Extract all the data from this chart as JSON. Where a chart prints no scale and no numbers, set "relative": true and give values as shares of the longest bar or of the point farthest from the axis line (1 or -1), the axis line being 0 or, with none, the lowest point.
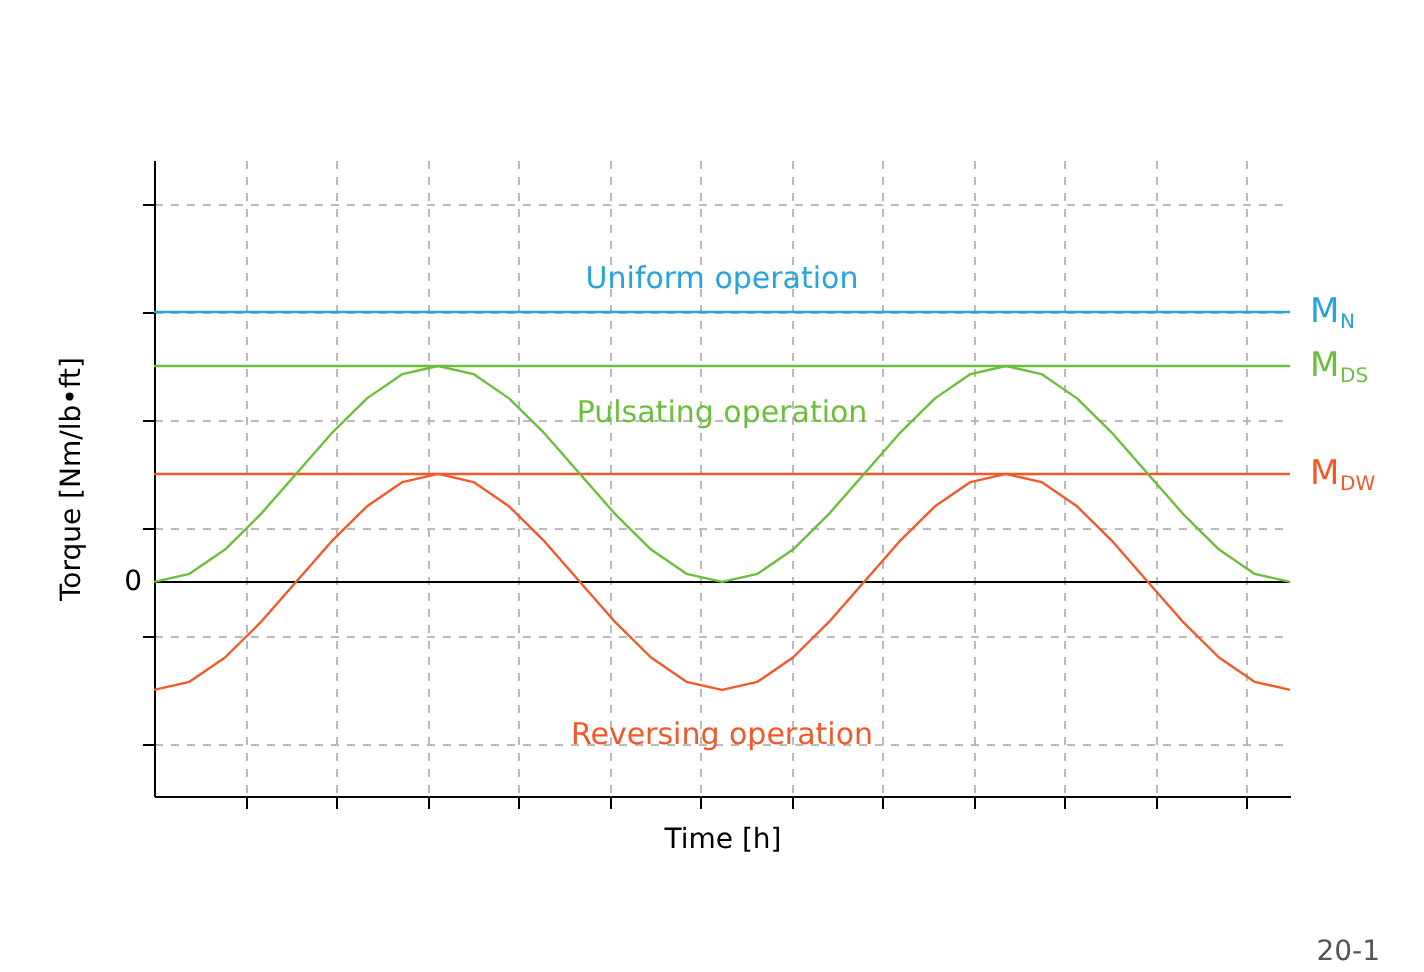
{
  "chart_data": {
    "type": "line",
    "relative": true,
    "xlabel": "Time [h]",
    "ylabel": "Torque [Nm/lb•ft]",
    "grid": true,
    "categories": [
      null,
      null,
      null,
      null,
      null,
      null,
      null,
      null,
      null,
      null,
      null,
      null,
      null,
      null,
      null,
      null,
      null,
      null,
      null,
      null,
      null,
      null,
      null,
      null,
      null,
      null,
      null,
      null,
      null,
      null,
      null,
      null,
      null
    ],
    "series": [
      {
        "name": "M$_{N}$",
        "color": "#29a3dc",
        "values": [
          1,
          1,
          1,
          1,
          1,
          1,
          1,
          1,
          1,
          1,
          1,
          1,
          1,
          1,
          1,
          1,
          1,
          1,
          1,
          1,
          1,
          1,
          1,
          1,
          1,
          1,
          1,
          1,
          1,
          1,
          1,
          1,
          1
        ]
      },
      {
        "name": "M$_{DS}$",
        "color": "#6cbf3a",
        "values": [
          0.8,
          0.8,
          0.8,
          0.8,
          0.8,
          0.8,
          0.8,
          0.8,
          0.8,
          0.8,
          0.8,
          0.8,
          0.8,
          0.8,
          0.8,
          0.8,
          0.8,
          0.8,
          0.8,
          0.8,
          0.8,
          0.8,
          0.8,
          0.8,
          0.8,
          0.8,
          0.8,
          0.8,
          0.8,
          0.8,
          0.8,
          0.8,
          0.8
        ]
      },
      {
        "name": "M$_{DW}$",
        "color": "#f05a28",
        "values": [
          0.4,
          0.4,
          0.4,
          0.4,
          0.4,
          0.4,
          0.4,
          0.4,
          0.4,
          0.4,
          0.4,
          0.4,
          0.4,
          0.4,
          0.4,
          0.4,
          0.4,
          0.4,
          0.4,
          0.4,
          0.4,
          0.4,
          0.4,
          0.4,
          0.4,
          0.4,
          0.4,
          0.4,
          0.4,
          0.4,
          0.4,
          0.4,
          0.4
        ]
      },
      {
        "name": "Pulsating operation",
        "color": "#6cbf3a",
        "values": [
          0,
          0.03,
          0.12,
          0.25,
          0.4,
          0.55,
          0.68,
          0.77,
          0.8,
          0.77,
          0.68,
          0.55,
          0.4,
          0.25,
          0.12,
          0.03,
          0,
          0.03,
          0.12,
          0.25,
          0.4,
          0.55,
          0.68,
          0.77,
          0.8,
          0.77,
          0.68,
          0.55,
          0.4,
          0.25,
          0.12,
          0.03,
          0
        ]
      },
      {
        "name": "Reversing operation",
        "color": "#f05a28",
        "values": [
          -0.4,
          -0.37,
          -0.28,
          -0.15,
          0,
          0.15,
          0.28,
          0.37,
          0.4,
          0.37,
          0.28,
          0.15,
          0,
          -0.15,
          -0.28,
          -0.37,
          -0.4,
          -0.37,
          -0.28,
          -0.15,
          0,
          0.15,
          0.28,
          0.37,
          0.4,
          0.37,
          0.28,
          0.15,
          0,
          -0.15,
          -0.28,
          -0.37,
          -0.4
        ]
      }
    ],
    "ref_lines": [
      {
        "axis": "y",
        "value": 0,
        "label": "0",
        "color": "#000000"
      }
    ],
    "annotations": [
      {
        "text": "Uniform operation",
        "y": 1
      },
      "20-1"
    ]
  }
}
